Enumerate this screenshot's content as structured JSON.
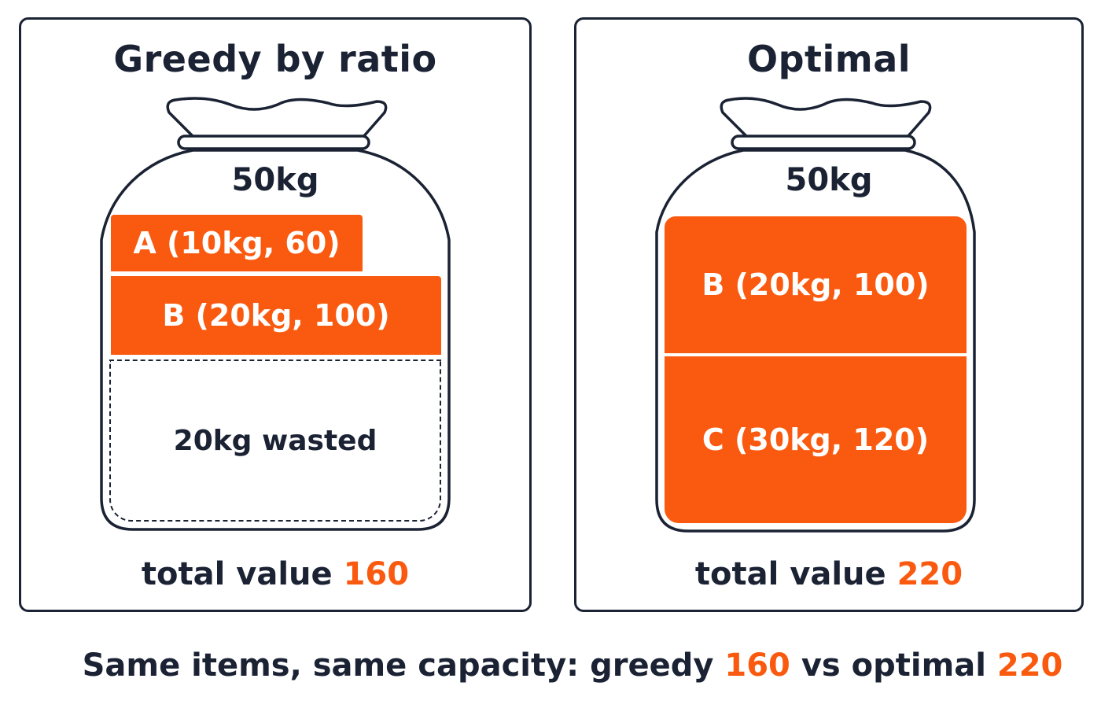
{
  "colors": {
    "accent": "#f95a0f",
    "ink": "#1a2233"
  },
  "left_panel": {
    "title": "Greedy by ratio",
    "capacity": "50kg",
    "items": [
      {
        "label": "A (10kg, 60)",
        "weight_kg": 10,
        "value": 60
      },
      {
        "label": "B (20kg, 100)",
        "weight_kg": 20,
        "value": 100
      }
    ],
    "wasted_label": "20kg wasted",
    "wasted_kg": 20,
    "total_label": "total value",
    "total_value": "160"
  },
  "right_panel": {
    "title": "Optimal",
    "capacity": "50kg",
    "items": [
      {
        "label": "B (20kg, 100)",
        "weight_kg": 20,
        "value": 100
      },
      {
        "label": "C (30kg, 120)",
        "weight_kg": 30,
        "value": 120
      }
    ],
    "total_label": "total value",
    "total_value": "220"
  },
  "caption": {
    "prefix": "Same items, same capacity: greedy",
    "greedy_value": "160",
    "middle": "vs optimal",
    "optimal_value": "220"
  }
}
